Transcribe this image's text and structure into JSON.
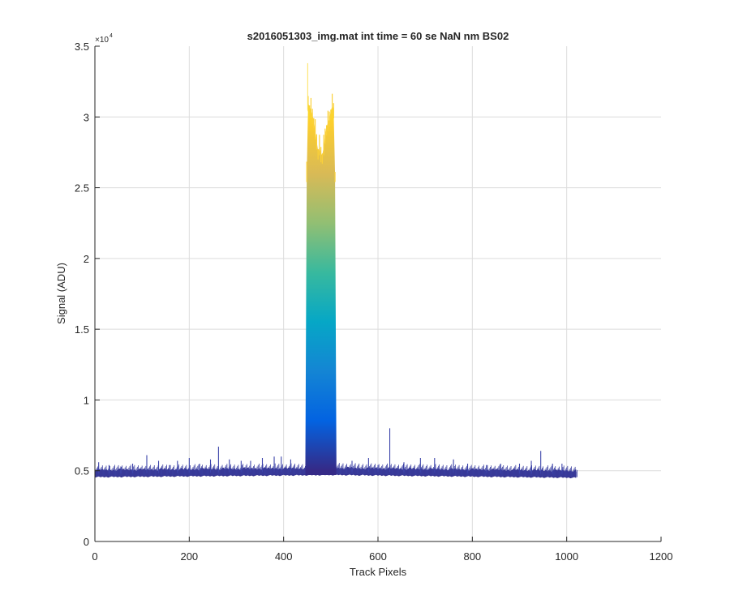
{
  "chart_data": {
    "type": "area",
    "title": "s2016051303_img.mat int time = 60 se  NaN nm BS02",
    "xlabel": "Track Pixels",
    "ylabel": "Signal (ADU)",
    "xlim": [
      0,
      1200
    ],
    "ylim": [
      0,
      35000
    ],
    "y_exponent_label": "×10",
    "y_exponent_power": "4",
    "x_ticks": [
      0,
      200,
      400,
      600,
      800,
      1000,
      1200
    ],
    "x_tick_labels": [
      "0",
      "200",
      "400",
      "600",
      "800",
      "1000",
      "1200"
    ],
    "y_ticks": [
      0,
      5000,
      10000,
      15000,
      20000,
      25000,
      30000,
      35000
    ],
    "y_tick_labels": [
      "0",
      "0.5",
      "1",
      "1.5",
      "2",
      "2.5",
      "3",
      "3.5"
    ],
    "grid": true,
    "colormap": "parula",
    "colormap_stops": [
      "#352a87",
      "#0363e1",
      "#1485d4",
      "#06a7c6",
      "#38b99e",
      "#92bf73",
      "#d9ba56",
      "#fcce2e",
      "#f9fb0e"
    ],
    "baseline": {
      "x_start": 0,
      "x_end": 1023,
      "value_start": 4800,
      "value_mid": 4950,
      "value_end": 4750,
      "band_low": 4550
    },
    "peak_region": {
      "x_start": 448,
      "x_end": 510
    },
    "peak_profile": {
      "x": [
        446,
        449,
        452,
        455,
        458,
        461,
        464,
        467,
        470,
        473,
        476,
        479,
        482,
        485,
        488,
        491,
        494,
        497,
        500,
        503,
        506,
        509,
        512
      ],
      "y": [
        4900,
        26000,
        31000,
        30700,
        30500,
        30100,
        29800,
        29000,
        28300,
        27600,
        27900,
        27400,
        27300,
        27900,
        28700,
        29300,
        29600,
        29900,
        30400,
        30800,
        30500,
        26000,
        4900
      ]
    },
    "peak_top_spike": {
      "x": 451,
      "y": 33800
    },
    "spikes": {
      "x": [
        8,
        30,
        55,
        80,
        110,
        135,
        158,
        175,
        200,
        222,
        245,
        262,
        285,
        310,
        330,
        355,
        380,
        395,
        415,
        545,
        580,
        600,
        625,
        655,
        690,
        720,
        760,
        790,
        830,
        860,
        900,
        925,
        945,
        970,
        990
      ],
      "y": [
        5600,
        5400,
        5300,
        5500,
        6100,
        5700,
        5400,
        5700,
        5900,
        5500,
        5800,
        6700,
        5800,
        5700,
        5700,
        5900,
        6000,
        6000,
        5800,
        5700,
        5900,
        5400,
        8000,
        5600,
        5900,
        5900,
        5800,
        5500,
        5400,
        5500,
        5500,
        5700,
        6400,
        5500,
        5500
      ]
    }
  }
}
